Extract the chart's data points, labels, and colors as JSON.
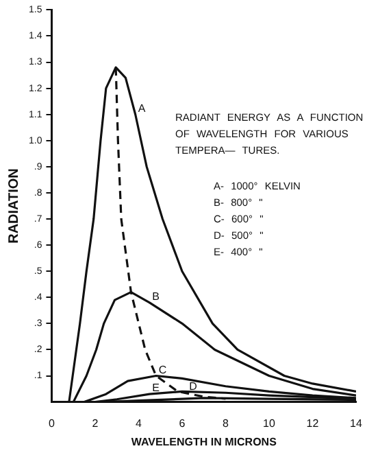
{
  "chart_data": {
    "type": "line",
    "xlabel": "WAVELENGTH IN MICRONS",
    "ylabel": "RADIATION",
    "xlim": [
      0,
      14
    ],
    "xticks": [
      0,
      2,
      4,
      6,
      8,
      10,
      12,
      14
    ],
    "ylim": [
      0,
      1.5
    ],
    "yticks": [
      {
        "value": 0.1,
        "label": ".1"
      },
      {
        "value": 0.2,
        "label": ".2"
      },
      {
        "value": 0.3,
        "label": ".3"
      },
      {
        "value": 0.4,
        "label": ".4"
      },
      {
        "value": 0.5,
        "label": ".5"
      },
      {
        "value": 0.6,
        "label": ".6"
      },
      {
        "value": 0.7,
        "label": ".7"
      },
      {
        "value": 0.8,
        "label": ".8"
      },
      {
        "value": 0.9,
        "label": ".9"
      },
      {
        "value": 1.0,
        "label": "1.0"
      },
      1.1,
      1.2,
      1.3,
      1.4,
      1.5
    ],
    "grid": false,
    "legend": false,
    "marker": "none",
    "line_style": "solid",
    "series": [
      {
        "color": "#111111",
        "x": [
          0.8,
          1,
          1.3,
          1.6,
          1.93,
          2.25,
          2.5,
          2.95,
          3.4,
          3.85,
          4.37,
          5.1,
          6,
          7.4,
          8.55,
          10.7,
          12,
          14
        ],
        "values": [
          0,
          0.12,
          0.3,
          0.5,
          0.7,
          1.0,
          1.2,
          1.28,
          1.24,
          1.1,
          0.9,
          0.7,
          0.5,
          0.3,
          0.2,
          0.1,
          0.07,
          0.04
        ]
      },
      {
        "color": "#111111",
        "x": [
          1,
          1.6,
          2.05,
          2.4,
          2.9,
          3.65,
          4.5,
          6,
          7.5,
          10,
          12,
          14
        ],
        "values": [
          0,
          0.1,
          0.2,
          0.3,
          0.39,
          0.42,
          0.38,
          0.3,
          0.2,
          0.1,
          0.05,
          0.025
        ]
      },
      {
        "color": "#111111",
        "x": [
          1.5,
          2.5,
          3.5,
          4.8,
          6,
          8,
          10,
          12,
          14
        ],
        "values": [
          0,
          0.03,
          0.08,
          0.1,
          0.09,
          0.06,
          0.04,
          0.025,
          0.015
        ]
      },
      {
        "color": "#111111",
        "x": [
          2,
          3,
          4.5,
          6,
          8,
          10,
          14
        ],
        "values": [
          0,
          0.01,
          0.03,
          0.04,
          0.035,
          0.025,
          0.012
        ]
      },
      {
        "color": "#111111",
        "x": [
          2.5,
          4,
          7,
          10,
          14
        ],
        "values": [
          0,
          0.005,
          0.015,
          0.012,
          0.008
        ]
      },
      {
        "color": "#111111",
        "line_style": "dashed",
        "x": [
          2.95,
          3.05,
          3.2,
          3.65,
          4.3,
          4.8,
          5.8,
          7,
          8
        ],
        "values": [
          1.28,
          1.0,
          0.7,
          0.42,
          0.2,
          0.1,
          0.04,
          0.02,
          0.012
        ]
      }
    ],
    "annotations": [
      "RADIANT ENERGY AS A FUNCTION OF WAVELENGTH FOR VARIOUS TEMPERA— TURES.",
      "A- 1000° KELVIN",
      "B- 800° \"",
      "C- 600° \"",
      "D- 500° \"",
      "E- 400° \"",
      {
        "text": "A",
        "x": 3.85,
        "y": 1.1
      },
      {
        "text": "B",
        "x": 4.5,
        "y": 0.38
      },
      {
        "text": "C",
        "x": 4.8,
        "y": 0.1
      },
      {
        "text": "D",
        "x": 6.2,
        "y": 0.036
      },
      {
        "text": "E",
        "x": 4.5,
        "y": 0.03
      }
    ]
  }
}
